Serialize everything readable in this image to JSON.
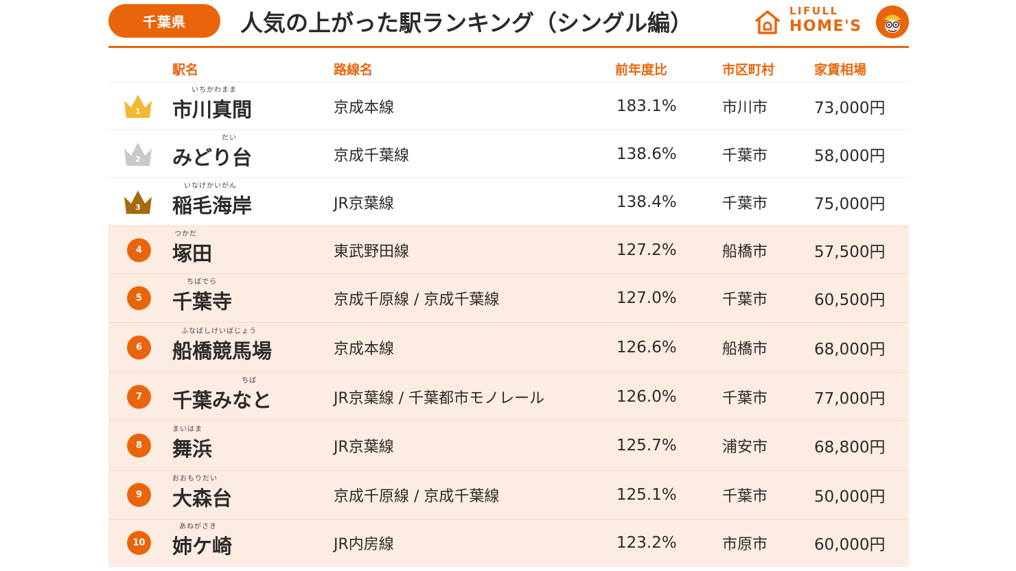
{
  "header": {
    "prefecture": "千葉県",
    "title": "人気の上がった駅ランキング（シングル編）",
    "brand_line1": "LIFULL",
    "brand_line2": "HOME'S"
  },
  "columns": {
    "station": "駅名",
    "line": "路線名",
    "ratio": "前年度比",
    "city": "市区町村",
    "rent": "家賃相場"
  },
  "colors": {
    "accent": "#e9650c",
    "shaded_row": "#fdece2",
    "gold": "#f4b731",
    "silver": "#c9c9c9",
    "bronze": "#a66a12"
  },
  "rows": [
    {
      "rank": "1",
      "ruby": "いちかわまま",
      "station": "市川真間",
      "line": "京成本線",
      "ratio": "183.1%",
      "city": "市川市",
      "rent": "73,000円",
      "marker": "gold-crown-icon"
    },
    {
      "rank": "2",
      "ruby": "だい",
      "station": "みどり台",
      "line": "京成千葉線",
      "ratio": "138.6%",
      "city": "千葉市",
      "rent": "58,000円",
      "marker": "silver-crown-icon"
    },
    {
      "rank": "3",
      "ruby": "いなげかいがん",
      "station": "稲毛海岸",
      "line": "JR京葉線",
      "ratio": "138.4%",
      "city": "千葉市",
      "rent": "75,000円",
      "marker": "bronze-crown-icon"
    },
    {
      "rank": "4",
      "ruby": "つかだ",
      "station": "塚田",
      "line": "東武野田線",
      "ratio": "127.2%",
      "city": "船橋市",
      "rent": "57,500円",
      "marker": "rank-circle"
    },
    {
      "rank": "5",
      "ruby": "ちばでら",
      "station": "千葉寺",
      "line": "京成千原線 / 京成千葉線",
      "ratio": "127.0%",
      "city": "千葉市",
      "rent": "60,500円",
      "marker": "rank-circle"
    },
    {
      "rank": "6",
      "ruby": "ふなばしけいばじょう",
      "station": "船橋競馬場",
      "line": "京成本線",
      "ratio": "126.6%",
      "city": "船橋市",
      "rent": "68,000円",
      "marker": "rank-circle"
    },
    {
      "rank": "7",
      "ruby": "ちば",
      "station": "千葉みなと",
      "line": "JR京葉線 / 千葉都市モノレール",
      "ratio": "126.0%",
      "city": "千葉市",
      "rent": "77,000円",
      "marker": "rank-circle"
    },
    {
      "rank": "8",
      "ruby": "まいはま",
      "station": "舞浜",
      "line": "JR京葉線",
      "ratio": "125.7%",
      "city": "浦安市",
      "rent": "68,800円",
      "marker": "rank-circle"
    },
    {
      "rank": "9",
      "ruby": "おおもりだい",
      "station": "大森台",
      "line": "京成千原線 / 京成千葉線",
      "ratio": "125.1%",
      "city": "千葉市",
      "rent": "50,000円",
      "marker": "rank-circle"
    },
    {
      "rank": "10",
      "ruby": "あねがさき",
      "station": "姉ケ崎",
      "line": "JR内房線",
      "ratio": "123.2%",
      "city": "市原市",
      "rent": "60,000円",
      "marker": "rank-circle"
    }
  ]
}
